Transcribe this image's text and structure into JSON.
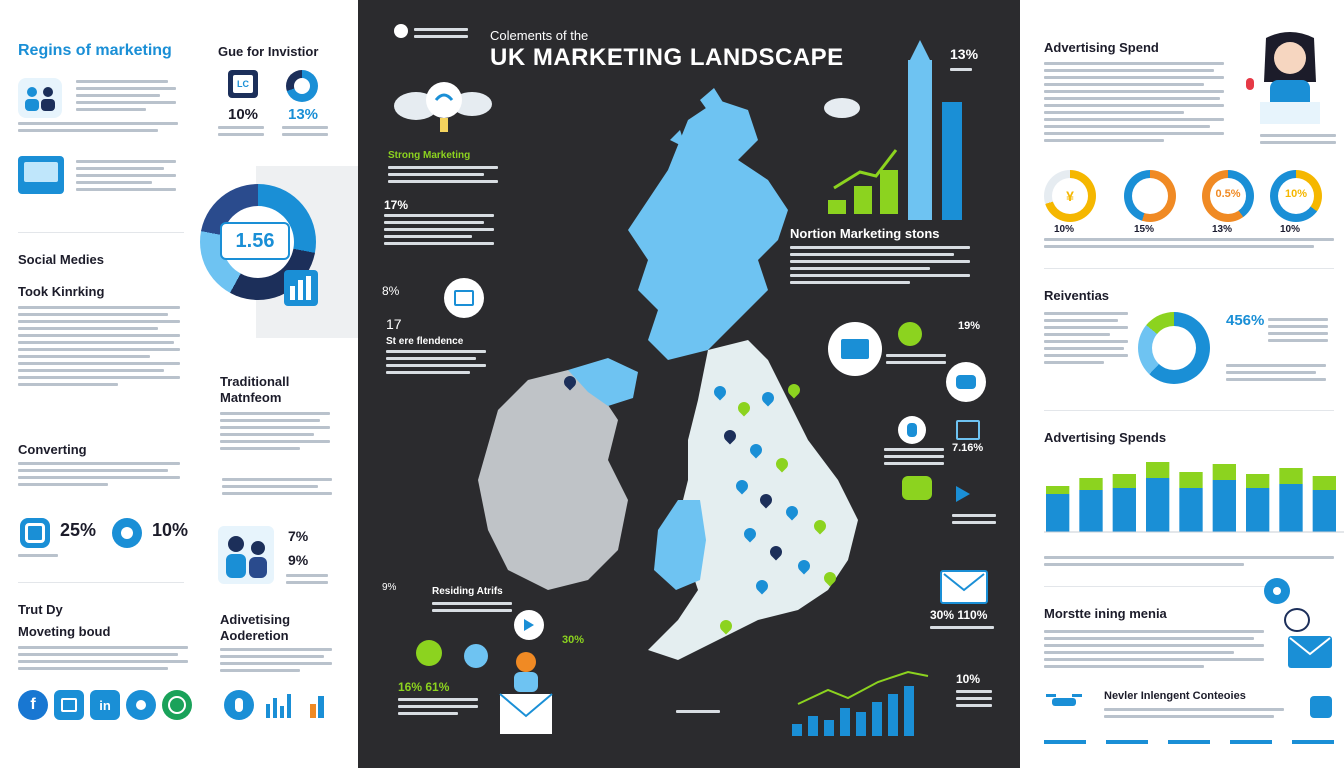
{
  "header": {
    "kicker": "Colements of the",
    "title": "UK MARKETING LANDSCAPE",
    "top_right_stat": "13%"
  },
  "left": {
    "regions_title": "Regins of marketing",
    "gue_title": "Gue for Invistior",
    "gue_stat_1": "10%",
    "gue_stat_2": "13%",
    "donut_value": "1.56",
    "social_title": "Social Medies",
    "took_title": "Took Kinrking",
    "converting_title": "Converting",
    "converting_stat_1": "25%",
    "converting_stat_2": "10%",
    "trust_title_1": "Trut Dy",
    "trust_title_2": "Moveting boud",
    "traditional_title_1": "Traditionall",
    "traditional_title_2": "Matnfeom",
    "traditional_stat_1": "7%",
    "traditional_stat_2": "9%",
    "advertising_title_1": "Adivetising",
    "advertising_title_2": "Aoderetion",
    "social_icons": [
      "facebook-icon",
      "lock-icon",
      "linkedin-icon",
      "person-icon",
      "whatsapp-icon"
    ]
  },
  "center": {
    "stat_a": "17%",
    "stat_b": "8%",
    "stat_c": "17",
    "stat_d": "9%",
    "stat_e": "30%",
    "stat_f": "16% 61%",
    "stat_g": "19%",
    "stat_h": "30% 110%",
    "stat_i": "10%",
    "stat_j": "7.16%",
    "stat_k": "13%",
    "northern_title": "Nortion Marketing stons",
    "label_a": "Strong Marketing",
    "label_b": "St ere flendence",
    "label_c": "Residing Atrifs"
  },
  "right": {
    "spend_title": "Advertising Spend",
    "donut_stats": [
      "70%",
      "15%",
      "0.5%",
      "10%"
    ],
    "donut_labels": [
      "10%",
      "15%",
      "13%",
      "10%"
    ],
    "reventias_title": "Reiventias",
    "reventias_stat": "456%",
    "spends_title": "Advertising Spends",
    "bar_values": [
      {
        "blue": 38,
        "green": 8
      },
      {
        "blue": 42,
        "green": 12
      },
      {
        "blue": 44,
        "green": 14
      },
      {
        "blue": 54,
        "green": 16
      },
      {
        "blue": 44,
        "green": 16
      },
      {
        "blue": 52,
        "green": 16
      },
      {
        "blue": 44,
        "green": 14
      },
      {
        "blue": 48,
        "green": 16
      },
      {
        "blue": 42,
        "green": 14
      }
    ],
    "media_title": "Morstte ining menia",
    "interest_title": "Nevler Inlengent Conteoies"
  },
  "colors": {
    "accent_blue": "#1a8fd6",
    "light_blue": "#6ec3f2",
    "green": "#8cd31f",
    "dark_bg": "#2b2b2e",
    "navy": "#1c2f5a"
  }
}
